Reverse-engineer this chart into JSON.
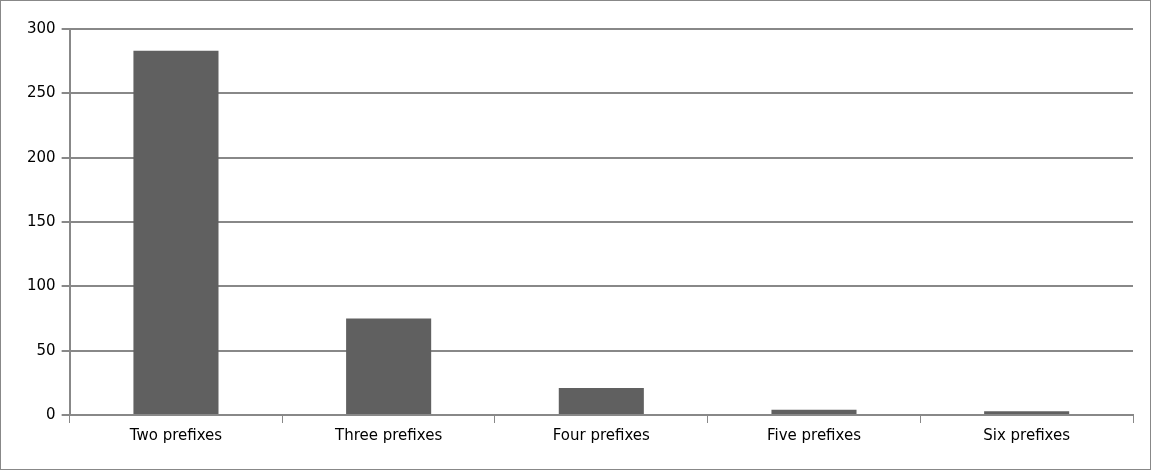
{
  "chart_data": {
    "type": "bar",
    "categories": [
      "Two prefixes",
      "Three prefixes",
      "Four prefixes",
      "Five prefixes",
      "Six prefixes"
    ],
    "values": [
      283,
      75,
      21,
      4,
      3
    ],
    "color": "#606060",
    "ylim": [
      0,
      300
    ],
    "yticks": [
      0,
      50,
      100,
      150,
      200,
      250,
      300
    ],
    "grid": "y",
    "legend": false
  }
}
